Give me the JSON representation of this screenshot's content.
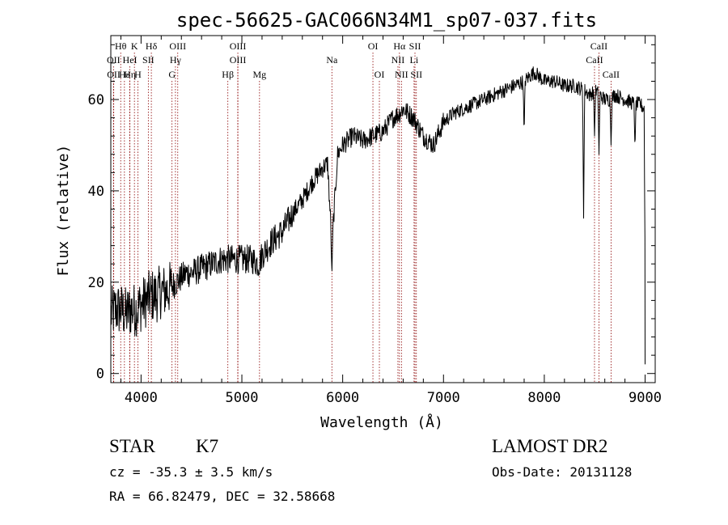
{
  "chart_data": {
    "type": "line",
    "title": "spec-56625-GAC066N34M1_sp07-037.fits",
    "xlabel": "Wavelength (Å)",
    "ylabel": "Flux (relative)",
    "xlim": [
      3700,
      9100
    ],
    "ylim": [
      -2,
      74
    ],
    "x_ticks": [
      4000,
      5000,
      6000,
      7000,
      8000,
      9000
    ],
    "y_ticks": [
      0,
      20,
      40,
      60
    ],
    "grid": false,
    "line_color": "#000000",
    "marker_color": "#8b0000",
    "spectrum_anchors": {
      "x": [
        3700,
        3750,
        3800,
        3850,
        3900,
        3950,
        4000,
        4050,
        4100,
        4150,
        4200,
        4250,
        4300,
        4350,
        4400,
        4450,
        4500,
        4600,
        4700,
        4800,
        4850,
        4900,
        5000,
        5100,
        5170,
        5200,
        5300,
        5400,
        5500,
        5600,
        5700,
        5800,
        5850,
        5893,
        5950,
        6000,
        6100,
        6200,
        6300,
        6400,
        6500,
        6563,
        6600,
        6650,
        6700,
        6750,
        6800,
        6850,
        6900,
        7000,
        7100,
        7200,
        7300,
        7400,
        7500,
        7600,
        7700,
        7800,
        7850,
        7900,
        8000,
        8100,
        8200,
        8300,
        8400,
        8450,
        8500,
        8550,
        8600,
        8650,
        8700,
        8800,
        8900,
        8950,
        8990,
        9000
      ],
      "y": [
        13,
        14,
        14,
        13,
        14,
        14,
        15,
        16,
        17,
        17,
        18,
        18,
        19,
        20,
        21,
        22,
        22,
        23,
        24,
        25,
        25,
        25,
        25,
        25,
        24,
        26,
        29,
        31,
        35,
        38,
        42,
        45,
        46,
        28,
        48,
        50,
        52,
        51,
        52,
        53,
        56,
        57,
        58,
        57,
        56,
        54,
        52,
        51,
        50,
        55,
        57,
        58,
        59,
        60,
        61,
        62,
        63,
        64,
        65,
        66,
        64,
        64,
        63,
        63,
        62,
        61,
        62,
        61,
        60,
        60,
        61,
        60,
        59,
        59,
        58,
        22
      ]
    },
    "absorption_dips": [
      {
        "x": 5893,
        "y": 22
      },
      {
        "x": 7800,
        "y": 52
      },
      {
        "x": 8390,
        "y": 34
      },
      {
        "x": 8498,
        "y": 52
      },
      {
        "x": 8542,
        "y": 48
      },
      {
        "x": 8662,
        "y": 50
      },
      {
        "x": 8900,
        "y": 49
      }
    ],
    "line_markers": [
      {
        "label": "Hθ",
        "x": 3798,
        "row": 0
      },
      {
        "label": "K",
        "x": 3934,
        "row": 0
      },
      {
        "label": "Hδ",
        "x": 4102,
        "row": 0
      },
      {
        "label": "OIII",
        "x": 4364,
        "row": 0
      },
      {
        "label": "OIII",
        "x": 4960,
        "row": 0
      },
      {
        "label": "OI",
        "x": 6300,
        "row": 0
      },
      {
        "label": "Hα",
        "x": 6563,
        "row": 0
      },
      {
        "label": "SII",
        "x": 6717,
        "row": 0
      },
      {
        "label": "CaII",
        "x": 8542,
        "row": 0
      },
      {
        "label": "OII",
        "x": 3727,
        "row": 1
      },
      {
        "label": "HeI",
        "x": 3889,
        "row": 1
      },
      {
        "label": "SII",
        "x": 4072,
        "row": 1
      },
      {
        "label": "Hγ",
        "x": 4341,
        "row": 1
      },
      {
        "label": "OIII",
        "x": 4960,
        "row": 1
      },
      {
        "label": "Na",
        "x": 5893,
        "row": 1
      },
      {
        "label": "NII",
        "x": 6548,
        "row": 1
      },
      {
        "label": "Li",
        "x": 6708,
        "row": 1
      },
      {
        "label": "CaII",
        "x": 8498,
        "row": 1
      },
      {
        "label": "OII",
        "x": 3729,
        "row": 2
      },
      {
        "label": "Hε",
        "x": 3835,
        "row": 2
      },
      {
        "label": "Hη",
        "x": 3889,
        "row": 2
      },
      {
        "label": "H",
        "x": 3968,
        "row": 2
      },
      {
        "label": "G",
        "x": 4307,
        "row": 2
      },
      {
        "label": "Hβ",
        "x": 4861,
        "row": 2
      },
      {
        "label": "Mg",
        "x": 5175,
        "row": 2
      },
      {
        "label": "OI",
        "x": 6364,
        "row": 2
      },
      {
        "label": "NII",
        "x": 6583,
        "row": 2
      },
      {
        "label": "SII",
        "x": 6731,
        "row": 2
      },
      {
        "label": "CaII",
        "x": 8662,
        "row": 2
      }
    ]
  },
  "info": {
    "class": "STAR",
    "subclass": "K7",
    "survey": "LAMOST DR2",
    "cz": "cz = -35.3 ± 3.5 km/s",
    "obs_date": "Obs-Date: 20131128",
    "coords": "RA =  66.82479, DEC =  32.58668"
  }
}
